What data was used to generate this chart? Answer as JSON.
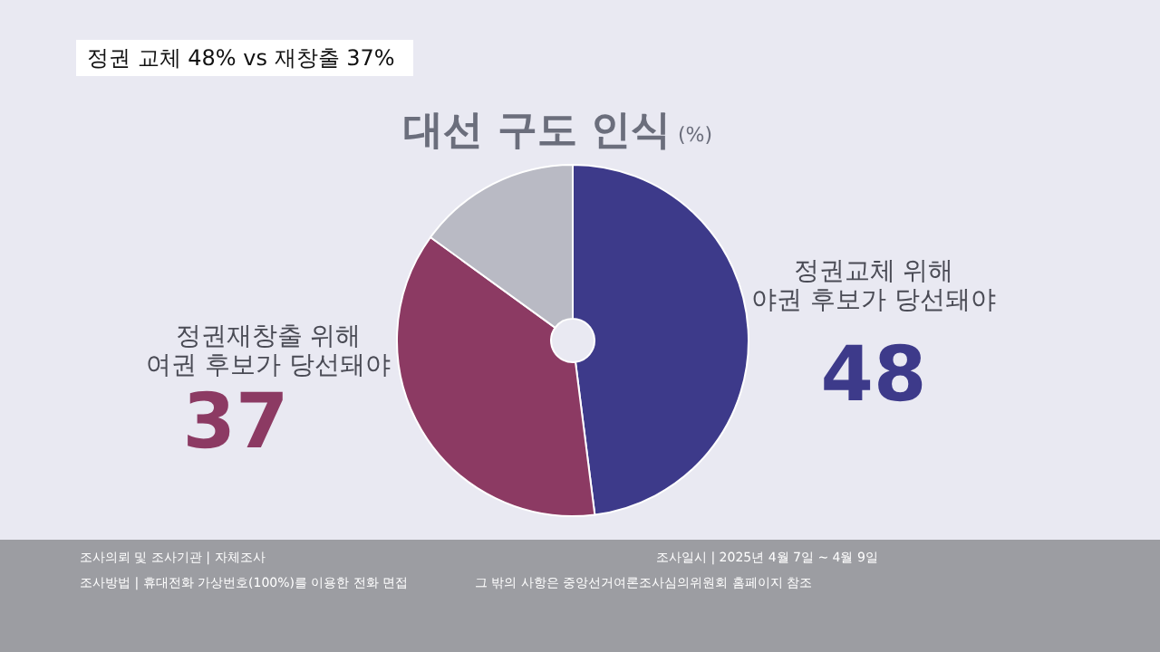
{
  "chart_data": {
    "type": "donut",
    "title": "대선 구도 인식",
    "subtitle": "(%)",
    "categories": [
      "정권교체 위해\n야권 후보가 당선돼야",
      "정권재창출 위해\n여권 후보가 당선돼야",
      null
    ],
    "values": [
      48,
      37,
      15
    ],
    "colors": [
      "#3d3a8a",
      "#8c3a63",
      "#b9bac4"
    ],
    "value_labels": [
      "48",
      "37",
      null
    ],
    "annotations": [
      "정권 교체 48% vs 재창출 37%",
      "조사의뢰 및 조사기관 | 자체조사",
      "조사일시 | 2025년 4월 7일 ~ 4월 9일",
      "조사방법 | 휴대전화 가상번호(100%)를 이용한 전화 면접",
      "그 밖의 사항은 중앙선거여론조사심의위원회 홈페이지 참조"
    ]
  }
}
